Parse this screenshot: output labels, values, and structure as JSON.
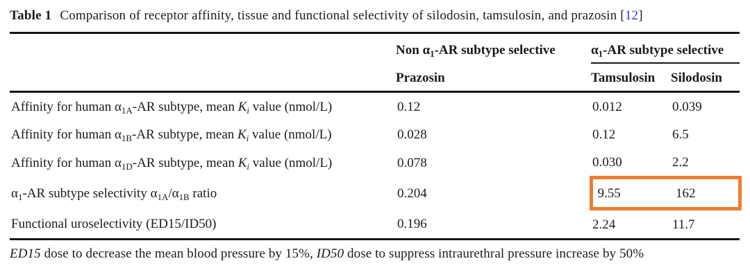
{
  "colors": {
    "highlight_box": "#ED7D31",
    "citation_link": "#3333cc",
    "text_ink": "#1b1b1b",
    "rule": "#151515"
  },
  "title": {
    "label": "Table 1",
    "text": "Comparison of receptor affinity, tissue and functional selectivity of silodosin, tamsulosin, and prazosin",
    "citation": {
      "open": "[",
      "number": "12",
      "close": "]"
    }
  },
  "table": {
    "group_headers": {
      "non_selective_segments": [
        {
          "t": "Non "
        },
        {
          "t": "α"
        },
        {
          "t": "1",
          "sub": true
        },
        {
          "t": "-AR subtype selective"
        }
      ],
      "selective_segments": [
        {
          "t": "α"
        },
        {
          "t": "1",
          "sub": true
        },
        {
          "t": "-AR subtype selective"
        }
      ]
    },
    "column_headers": [
      "Prazosin",
      "Tamsulosin",
      "Silodosin"
    ],
    "rows": [
      {
        "label_segments": [
          {
            "t": "Affinity for human "
          },
          {
            "t": "α"
          },
          {
            "t": "1A",
            "sub": true
          },
          {
            "t": "-AR subtype, mean "
          },
          {
            "t": "K",
            "i": true
          },
          {
            "t": "i",
            "sub": true,
            "i": true
          },
          {
            "t": " value (nmol/L)"
          }
        ],
        "values": [
          "0.12",
          "0.012",
          "0.039"
        ],
        "highlight": false
      },
      {
        "label_segments": [
          {
            "t": "Affinity for human "
          },
          {
            "t": "α"
          },
          {
            "t": "1B",
            "sub": true
          },
          {
            "t": "-AR subtype, mean "
          },
          {
            "t": "K",
            "i": true
          },
          {
            "t": "i",
            "sub": true,
            "i": true
          },
          {
            "t": " value (nmol/L)"
          }
        ],
        "values": [
          "0.028",
          "0.12",
          "6.5"
        ],
        "highlight": false
      },
      {
        "label_segments": [
          {
            "t": "Affinity for human "
          },
          {
            "t": "α"
          },
          {
            "t": "1D",
            "sub": true
          },
          {
            "t": "-AR subtype, mean "
          },
          {
            "t": "K",
            "i": true
          },
          {
            "t": "i",
            "sub": true,
            "i": true
          },
          {
            "t": " value (nmol/L)"
          }
        ],
        "values": [
          "0.078",
          "0.030",
          "2.2"
        ],
        "highlight": false
      },
      {
        "label_segments": [
          {
            "t": "α"
          },
          {
            "t": "1",
            "sub": true
          },
          {
            "t": "-AR subtype selectivity "
          },
          {
            "t": "α"
          },
          {
            "t": "1A",
            "sub": true
          },
          {
            "t": "/"
          },
          {
            "t": "α"
          },
          {
            "t": "1B",
            "sub": true
          },
          {
            "t": " ratio"
          }
        ],
        "values": [
          "0.204",
          "9.55",
          "162"
        ],
        "highlight": true
      },
      {
        "label_segments": [
          {
            "t": "Functional uroselectivity (ED15/ID50)"
          }
        ],
        "values": [
          "0.196",
          "2.24",
          "11.7"
        ],
        "highlight": false
      }
    ]
  },
  "footnote": {
    "segments": [
      {
        "t": "ED15",
        "i": true
      },
      {
        "t": " dose to decrease the mean blood pressure by 15%, "
      },
      {
        "t": "ID50",
        "i": true
      },
      {
        "t": "  dose to suppress intraurethral pressure increase by 50%"
      }
    ]
  }
}
